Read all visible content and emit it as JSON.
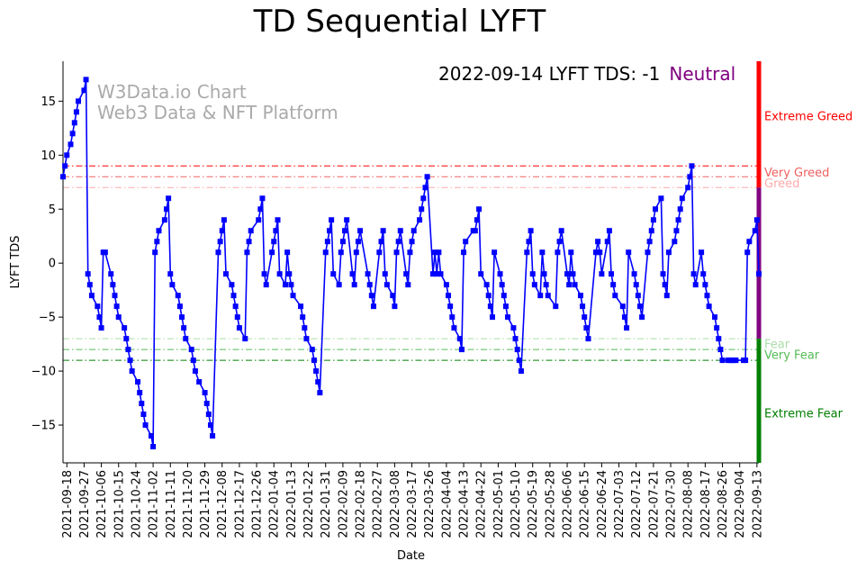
{
  "page": {
    "title": "TD Sequential LYFT",
    "status_text": "2022-09-14 LYFT TDS: -1",
    "status_zone": "Neutral",
    "watermark_line1": "W3Data.io Chart",
    "watermark_line2": "Web3 Data & NFT Platform"
  },
  "colors": {
    "line": "#0000ff",
    "neutral": "#800080",
    "extreme_greed": "#ff0000",
    "very_greed": "#f06060",
    "greed": "#ffaaaa",
    "fear": "#aaddaa",
    "very_fear": "#55bb55",
    "extreme_fear": "#008000"
  },
  "chart_data": {
    "type": "line",
    "title": "TD Sequential LYFT",
    "xlabel": "Date",
    "ylabel": "LYFT TDS",
    "ylim": [
      -18.5,
      18.7
    ],
    "yticks": [
      15,
      10,
      5,
      0,
      -5,
      -10,
      -15
    ],
    "x_start": "2021-09-16",
    "x_end": "2022-09-14",
    "xticks": [
      "2021-09-18",
      "2021-09-27",
      "2021-10-06",
      "2021-10-15",
      "2021-10-24",
      "2021-11-02",
      "2021-11-11",
      "2021-11-20",
      "2021-11-29",
      "2021-12-08",
      "2021-12-17",
      "2021-12-26",
      "2022-01-04",
      "2022-01-13",
      "2022-01-22",
      "2022-01-31",
      "2022-02-09",
      "2022-02-18",
      "2022-02-27",
      "2022-03-08",
      "2022-03-17",
      "2022-03-26",
      "2022-04-04",
      "2022-04-13",
      "2022-04-22",
      "2022-05-01",
      "2022-05-10",
      "2022-05-19",
      "2022-05-28",
      "2022-06-06",
      "2022-06-15",
      "2022-06-24",
      "2022-07-03",
      "2022-07-12",
      "2022-07-21",
      "2022-07-30",
      "2022-08-08",
      "2022-08-17",
      "2022-08-26",
      "2022-09-04",
      "2022-09-13"
    ],
    "thresholds": [
      {
        "label": "Very Greed",
        "value": 9
      },
      {
        "label": "Greed",
        "value": 8
      },
      {
        "label": "Greed",
        "value": 7
      },
      {
        "label": "Fear",
        "value": -7
      },
      {
        "label": "Very Fear",
        "value": -8
      },
      {
        "label": "Extreme Fear",
        "value": -9
      }
    ],
    "zone_labels": [
      {
        "label": "Extreme Greed",
        "value": 13.6
      },
      {
        "label": "Very Greed",
        "value": 8.4
      },
      {
        "label": "Greed",
        "value": 7.4
      },
      {
        "label": "Fear",
        "value": -7.5
      },
      {
        "label": "Very Fear",
        "value": -8.5
      },
      {
        "label": "Extreme Fear",
        "value": -13.9
      }
    ],
    "zone_bars": [
      {
        "name": "extreme_greed",
        "from": 7,
        "to": 18.7
      },
      {
        "name": "neutral",
        "from": -7,
        "to": 7
      },
      {
        "name": "extreme_fear",
        "from": -18.5,
        "to": -7
      }
    ],
    "series": [
      {
        "name": "LYFT TDS",
        "points": [
          [
            "2021-09-16",
            8
          ],
          [
            "2021-09-17",
            9
          ],
          [
            "2021-09-18",
            10
          ],
          [
            "2021-09-20",
            11
          ],
          [
            "2021-09-21",
            12
          ],
          [
            "2021-09-22",
            13
          ],
          [
            "2021-09-23",
            14
          ],
          [
            "2021-09-24",
            15
          ],
          [
            "2021-09-27",
            16
          ],
          [
            "2021-09-28",
            17
          ],
          [
            "2021-09-29",
            -1
          ],
          [
            "2021-09-30",
            -2
          ],
          [
            "2021-10-01",
            -3
          ],
          [
            "2021-10-04",
            -4
          ],
          [
            "2021-10-05",
            -5
          ],
          [
            "2021-10-06",
            -6
          ],
          [
            "2021-10-07",
            1
          ],
          [
            "2021-10-08",
            1
          ],
          [
            "2021-10-11",
            -1
          ],
          [
            "2021-10-12",
            -2
          ],
          [
            "2021-10-13",
            -3
          ],
          [
            "2021-10-14",
            -4
          ],
          [
            "2021-10-15",
            -5
          ],
          [
            "2021-10-18",
            -6
          ],
          [
            "2021-10-19",
            -7
          ],
          [
            "2021-10-20",
            -8
          ],
          [
            "2021-10-21",
            -9
          ],
          [
            "2021-10-22",
            -10
          ],
          [
            "2021-10-25",
            -11
          ],
          [
            "2021-10-26",
            -12
          ],
          [
            "2021-10-27",
            -13
          ],
          [
            "2021-10-28",
            -14
          ],
          [
            "2021-10-29",
            -15
          ],
          [
            "2021-11-01",
            -16
          ],
          [
            "2021-11-02",
            -17
          ],
          [
            "2021-11-03",
            1
          ],
          [
            "2021-11-04",
            2
          ],
          [
            "2021-11-05",
            3
          ],
          [
            "2021-11-08",
            4
          ],
          [
            "2021-11-09",
            5
          ],
          [
            "2021-11-10",
            6
          ],
          [
            "2021-11-11",
            -1
          ],
          [
            "2021-11-12",
            -2
          ],
          [
            "2021-11-15",
            -3
          ],
          [
            "2021-11-16",
            -4
          ],
          [
            "2021-11-17",
            -5
          ],
          [
            "2021-11-18",
            -6
          ],
          [
            "2021-11-19",
            -7
          ],
          [
            "2021-11-22",
            -8
          ],
          [
            "2021-11-23",
            -9
          ],
          [
            "2021-11-24",
            -10
          ],
          [
            "2021-11-26",
            -11
          ],
          [
            "2021-11-29",
            -12
          ],
          [
            "2021-11-30",
            -13
          ],
          [
            "2021-12-01",
            -14
          ],
          [
            "2021-12-02",
            -15
          ],
          [
            "2021-12-03",
            -16
          ],
          [
            "2021-12-06",
            1
          ],
          [
            "2021-12-07",
            2
          ],
          [
            "2021-12-08",
            3
          ],
          [
            "2021-12-09",
            4
          ],
          [
            "2021-12-10",
            -1
          ],
          [
            "2021-12-13",
            -2
          ],
          [
            "2021-12-14",
            -3
          ],
          [
            "2021-12-15",
            -4
          ],
          [
            "2021-12-16",
            -5
          ],
          [
            "2021-12-17",
            -6
          ],
          [
            "2021-12-20",
            -7
          ],
          [
            "2021-12-21",
            1
          ],
          [
            "2021-12-22",
            2
          ],
          [
            "2021-12-23",
            3
          ],
          [
            "2021-12-27",
            4
          ],
          [
            "2021-12-28",
            5
          ],
          [
            "2021-12-29",
            6
          ],
          [
            "2021-12-30",
            -1
          ],
          [
            "2021-12-31",
            -2
          ],
          [
            "2022-01-03",
            1
          ],
          [
            "2022-01-04",
            2
          ],
          [
            "2022-01-05",
            3
          ],
          [
            "2022-01-06",
            4
          ],
          [
            "2022-01-07",
            -1
          ],
          [
            "2022-01-10",
            -2
          ],
          [
            "2022-01-11",
            1
          ],
          [
            "2022-01-12",
            -1
          ],
          [
            "2022-01-13",
            -2
          ],
          [
            "2022-01-14",
            -3
          ],
          [
            "2022-01-18",
            -4
          ],
          [
            "2022-01-19",
            -5
          ],
          [
            "2022-01-20",
            -6
          ],
          [
            "2022-01-21",
            -7
          ],
          [
            "2022-01-24",
            -8
          ],
          [
            "2022-01-25",
            -9
          ],
          [
            "2022-01-26",
            -10
          ],
          [
            "2022-01-27",
            -11
          ],
          [
            "2022-01-28",
            -12
          ],
          [
            "2022-01-31",
            1
          ],
          [
            "2022-02-01",
            2
          ],
          [
            "2022-02-02",
            3
          ],
          [
            "2022-02-03",
            4
          ],
          [
            "2022-02-04",
            -1
          ],
          [
            "2022-02-07",
            -2
          ],
          [
            "2022-02-08",
            1
          ],
          [
            "2022-02-09",
            2
          ],
          [
            "2022-02-10",
            3
          ],
          [
            "2022-02-11",
            4
          ],
          [
            "2022-02-14",
            -1
          ],
          [
            "2022-02-15",
            -2
          ],
          [
            "2022-02-16",
            1
          ],
          [
            "2022-02-17",
            2
          ],
          [
            "2022-02-18",
            3
          ],
          [
            "2022-02-22",
            -1
          ],
          [
            "2022-02-23",
            -2
          ],
          [
            "2022-02-24",
            -3
          ],
          [
            "2022-02-25",
            -4
          ],
          [
            "2022-02-28",
            1
          ],
          [
            "2022-03-01",
            2
          ],
          [
            "2022-03-02",
            3
          ],
          [
            "2022-03-03",
            -1
          ],
          [
            "2022-03-04",
            -2
          ],
          [
            "2022-03-07",
            -3
          ],
          [
            "2022-03-08",
            -4
          ],
          [
            "2022-03-09",
            1
          ],
          [
            "2022-03-10",
            2
          ],
          [
            "2022-03-11",
            3
          ],
          [
            "2022-03-14",
            -1
          ],
          [
            "2022-03-15",
            -2
          ],
          [
            "2022-03-16",
            1
          ],
          [
            "2022-03-17",
            2
          ],
          [
            "2022-03-18",
            3
          ],
          [
            "2022-03-21",
            4
          ],
          [
            "2022-03-22",
            5
          ],
          [
            "2022-03-23",
            6
          ],
          [
            "2022-03-24",
            7
          ],
          [
            "2022-03-25",
            8
          ],
          [
            "2022-03-28",
            -1
          ],
          [
            "2022-03-29",
            1
          ],
          [
            "2022-03-30",
            -1
          ],
          [
            "2022-03-31",
            1
          ],
          [
            "2022-04-01",
            -1
          ],
          [
            "2022-04-04",
            -2
          ],
          [
            "2022-04-05",
            -3
          ],
          [
            "2022-04-06",
            -4
          ],
          [
            "2022-04-07",
            -5
          ],
          [
            "2022-04-08",
            -6
          ],
          [
            "2022-04-11",
            -7
          ],
          [
            "2022-04-12",
            -8
          ],
          [
            "2022-04-13",
            1
          ],
          [
            "2022-04-14",
            2
          ],
          [
            "2022-04-18",
            3
          ],
          [
            "2022-04-19",
            3
          ],
          [
            "2022-04-20",
            4
          ],
          [
            "2022-04-21",
            5
          ],
          [
            "2022-04-22",
            -1
          ],
          [
            "2022-04-25",
            -2
          ],
          [
            "2022-04-26",
            -3
          ],
          [
            "2022-04-27",
            -4
          ],
          [
            "2022-04-28",
            -5
          ],
          [
            "2022-04-29",
            1
          ],
          [
            "2022-05-02",
            -1
          ],
          [
            "2022-05-03",
            -2
          ],
          [
            "2022-05-04",
            -3
          ],
          [
            "2022-05-05",
            -4
          ],
          [
            "2022-05-06",
            -5
          ],
          [
            "2022-05-09",
            -6
          ],
          [
            "2022-05-10",
            -7
          ],
          [
            "2022-05-11",
            -8
          ],
          [
            "2022-05-12",
            -9
          ],
          [
            "2022-05-13",
            -10
          ],
          [
            "2022-05-16",
            1
          ],
          [
            "2022-05-17",
            2
          ],
          [
            "2022-05-18",
            3
          ],
          [
            "2022-05-19",
            -1
          ],
          [
            "2022-05-20",
            -2
          ],
          [
            "2022-05-23",
            -3
          ],
          [
            "2022-05-24",
            1
          ],
          [
            "2022-05-25",
            -1
          ],
          [
            "2022-05-26",
            -2
          ],
          [
            "2022-05-27",
            -3
          ],
          [
            "2022-05-31",
            -4
          ],
          [
            "2022-06-01",
            1
          ],
          [
            "2022-06-02",
            2
          ],
          [
            "2022-06-03",
            3
          ],
          [
            "2022-06-06",
            -1
          ],
          [
            "2022-06-07",
            -2
          ],
          [
            "2022-06-08",
            1
          ],
          [
            "2022-06-09",
            -1
          ],
          [
            "2022-06-10",
            -2
          ],
          [
            "2022-06-13",
            -3
          ],
          [
            "2022-06-14",
            -4
          ],
          [
            "2022-06-15",
            -5
          ],
          [
            "2022-06-16",
            -6
          ],
          [
            "2022-06-17",
            -7
          ],
          [
            "2022-06-21",
            1
          ],
          [
            "2022-06-22",
            2
          ],
          [
            "2022-06-23",
            1
          ],
          [
            "2022-06-24",
            -1
          ],
          [
            "2022-06-27",
            2
          ],
          [
            "2022-06-28",
            3
          ],
          [
            "2022-06-29",
            -1
          ],
          [
            "2022-06-30",
            -2
          ],
          [
            "2022-07-01",
            -3
          ],
          [
            "2022-07-05",
            -4
          ],
          [
            "2022-07-06",
            -5
          ],
          [
            "2022-07-07",
            -6
          ],
          [
            "2022-07-08",
            1
          ],
          [
            "2022-07-11",
            -1
          ],
          [
            "2022-07-12",
            -2
          ],
          [
            "2022-07-13",
            -3
          ],
          [
            "2022-07-14",
            -4
          ],
          [
            "2022-07-15",
            -5
          ],
          [
            "2022-07-18",
            1
          ],
          [
            "2022-07-19",
            2
          ],
          [
            "2022-07-20",
            3
          ],
          [
            "2022-07-21",
            4
          ],
          [
            "2022-07-22",
            5
          ],
          [
            "2022-07-25",
            6
          ],
          [
            "2022-07-26",
            -1
          ],
          [
            "2022-07-27",
            -2
          ],
          [
            "2022-07-28",
            -3
          ],
          [
            "2022-07-29",
            1
          ],
          [
            "2022-08-01",
            2
          ],
          [
            "2022-08-02",
            3
          ],
          [
            "2022-08-03",
            4
          ],
          [
            "2022-08-04",
            5
          ],
          [
            "2022-08-05",
            6
          ],
          [
            "2022-08-08",
            7
          ],
          [
            "2022-08-09",
            8
          ],
          [
            "2022-08-10",
            9
          ],
          [
            "2022-08-11",
            -1
          ],
          [
            "2022-08-12",
            -2
          ],
          [
            "2022-08-15",
            1
          ],
          [
            "2022-08-16",
            -1
          ],
          [
            "2022-08-17",
            -2
          ],
          [
            "2022-08-18",
            -3
          ],
          [
            "2022-08-19",
            -4
          ],
          [
            "2022-08-22",
            -5
          ],
          [
            "2022-08-23",
            -6
          ],
          [
            "2022-08-24",
            -7
          ],
          [
            "2022-08-25",
            -8
          ],
          [
            "2022-08-26",
            -9
          ],
          [
            "2022-08-29",
            -9
          ],
          [
            "2022-08-30",
            -9
          ],
          [
            "2022-08-31",
            -9
          ],
          [
            "2022-09-01",
            -9
          ],
          [
            "2022-09-02",
            -9
          ],
          [
            "2022-09-06",
            -9
          ],
          [
            "2022-09-07",
            -9
          ],
          [
            "2022-09-08",
            1
          ],
          [
            "2022-09-09",
            2
          ],
          [
            "2022-09-12",
            3
          ],
          [
            "2022-09-13",
            4
          ],
          [
            "2022-09-14",
            -1
          ]
        ]
      }
    ]
  }
}
